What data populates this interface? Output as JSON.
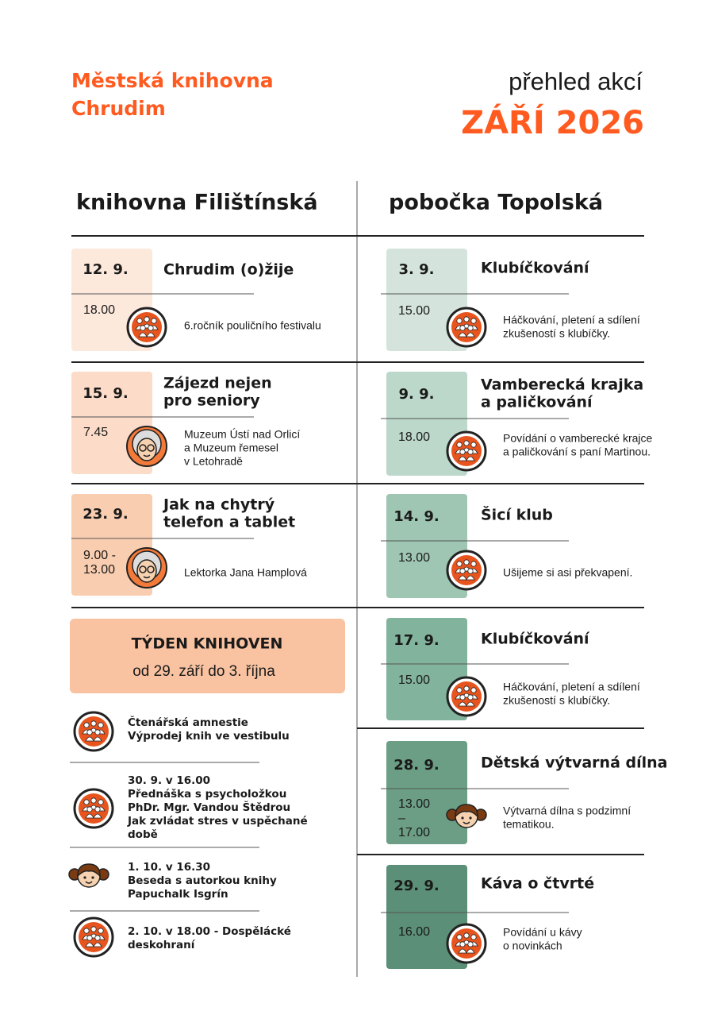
{
  "header": {
    "library": [
      "Městská knihovna",
      "Chrudim"
    ],
    "overview": "přehled akcí",
    "month": "ZÁŘÍ 2026"
  },
  "columns": [
    {
      "title": "knihovna Filištínská",
      "events": [
        {
          "date": "12. 9.",
          "title": [
            "Chrudim (o)žije"
          ],
          "time": [
            "18.00"
          ],
          "description": [
            "6.ročník pouličního festivalu"
          ]
        },
        {
          "date": "15. 9.",
          "title": [
            "Zájezd nejen",
            "pro seniory"
          ],
          "time": [
            "7.45"
          ],
          "description": [
            "Muzeum Ústí nad Orlicí",
            "a Muzeum řemesel",
            "v Letohradě"
          ]
        },
        {
          "date": "23. 9.",
          "title": [
            "Jak na chytrý",
            "telefon a tablet"
          ],
          "time": [
            "9.00 -",
            "13.00"
          ],
          "description": [
            "Lektorka Jana Hamplová"
          ]
        }
      ]
    },
    {
      "title": "pobočka Topolská",
      "events": [
        {
          "date": "3. 9.",
          "title": [
            "Klubíčkování"
          ],
          "time": [
            "15.00"
          ],
          "description": [
            "Háčkování, pletení a sdílení",
            "zkušeností s klubíčky."
          ]
        },
        {
          "date": "9. 9.",
          "title": [
            "Vamberecká krajka",
            "a paličkování"
          ],
          "time": [
            "18.00"
          ],
          "description": [
            "Povídání o vamberecké krajce",
            "a paličkování s paní Martinou."
          ]
        },
        {
          "date": "14. 9.",
          "title": [
            "Šicí klub"
          ],
          "time": [
            "13.00"
          ],
          "description": [
            "Ušijeme si asi překvapení."
          ]
        },
        {
          "date": "17. 9.",
          "title": [
            "Klubíčkování"
          ],
          "time": [
            "15.00"
          ],
          "description": [
            "Háčkování, pletení a sdílení",
            "zkušeností s klubíčky."
          ]
        },
        {
          "date": "28. 9.",
          "title": [
            "Dětská výtvarná dílna"
          ],
          "time": [
            "13.00",
            "–",
            "17.00"
          ],
          "description": [
            "Výtvarná dílna s podzimní",
            "tematikou."
          ]
        },
        {
          "date": "29. 9.",
          "title": [
            "Káva o čtvrté"
          ],
          "time": [
            "16.00"
          ],
          "description": [
            "Povídání u kávy",
            "o novinkách"
          ]
        }
      ]
    }
  ],
  "week": {
    "title": "TÝDEN KNIHOVEN",
    "subtitle": "od 29. září do 3. října",
    "items": [
      [
        "Čtenářská amnestie",
        "Výprodej knih ve vestibulu"
      ],
      [
        "30. 9. v 16.00",
        "Přednáška s psycholožkou",
        "PhDr. Mgr. Vandou Štědrou",
        "Jak zvládat stres v uspěchané",
        "době"
      ],
      [
        "1. 10. v 16.30",
        "Beseda s autorkou knihy",
        "Papuchalk Isgrín"
      ],
      [
        "2. 10. v 18.00 - Dospělácké",
        "deskohraní"
      ]
    ]
  }
}
